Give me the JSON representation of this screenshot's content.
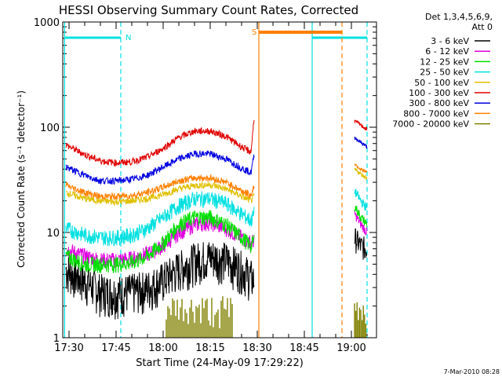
{
  "chart_data": {
    "type": "line",
    "title": "HESSI Observing Summary Count Rates, Corrected",
    "xlabel": "Start Time (24-May-09 17:29:22)",
    "ylabel": "Corrected Count Rate (s⁻¹ detector⁻¹)",
    "y_scale": "log",
    "ylim": [
      1,
      1000
    ],
    "xlim": [
      "17:28",
      "19:08"
    ],
    "x_ticks": [
      "17:30",
      "17:45",
      "18:00",
      "18:15",
      "18:30",
      "18:45",
      "19:00"
    ],
    "y_ticks": [
      "1",
      "10",
      "100",
      "1000"
    ],
    "legend_title": "Det 1,3,4,5,6,9,\nAtt 0",
    "legend_position": "right",
    "data_gap": [
      "18:29",
      "19:05"
    ],
    "series": [
      {
        "name": "3 - 6 keV",
        "color": "#000000",
        "x": [
          "17:29",
          "17:35",
          "17:40",
          "17:45",
          "17:50",
          "17:55",
          "18:00",
          "18:05",
          "18:10",
          "18:15",
          "18:20",
          "18:25",
          "18:28",
          "18:29"
        ],
        "y": [
          4.5,
          3.5,
          2.8,
          2.7,
          2.8,
          3.0,
          3.6,
          4.6,
          5.5,
          6.0,
          5.6,
          4.6,
          3.8,
          3.5
        ],
        "x2": [
          "19:01",
          "19:03",
          "19:05"
        ],
        "y2": [
          9.0,
          7.5,
          7.0
        ]
      },
      {
        "name": "6 - 12 keV",
        "color": "#e000e0",
        "x": [
          "17:29",
          "17:35",
          "17:40",
          "17:45",
          "17:50",
          "17:55",
          "18:00",
          "18:05",
          "18:10",
          "18:15",
          "18:20",
          "18:25",
          "18:28",
          "18:29"
        ],
        "y": [
          7.0,
          6.0,
          5.5,
          5.5,
          5.7,
          6.3,
          7.5,
          10.0,
          12.0,
          12.5,
          11.0,
          9.0,
          8.0,
          8.5
        ],
        "x2": [
          "19:01",
          "19:03",
          "19:05"
        ],
        "y2": [
          15.0,
          12.0,
          10.0
        ]
      },
      {
        "name": "12 - 25 keV",
        "color": "#00e000",
        "x": [
          "17:29",
          "17:35",
          "17:40",
          "17:45",
          "17:50",
          "17:55",
          "18:00",
          "18:05",
          "18:10",
          "18:15",
          "18:20",
          "18:25",
          "18:28",
          "18:29"
        ],
        "y": [
          6.0,
          5.0,
          5.0,
          5.0,
          5.2,
          6.0,
          8.0,
          12.0,
          14.0,
          14.0,
          12.0,
          9.0,
          7.5,
          8.5
        ],
        "x2": [
          "19:01",
          "19:03",
          "19:05"
        ],
        "y2": [
          18.0,
          14.0,
          12.0
        ]
      },
      {
        "name": "25 - 50 keV",
        "color": "#00e0e0",
        "x": [
          "17:29",
          "17:35",
          "17:40",
          "17:45",
          "17:50",
          "17:55",
          "18:00",
          "18:05",
          "18:10",
          "18:15",
          "18:20",
          "18:25",
          "18:28",
          "18:29"
        ],
        "y": [
          11.0,
          9.5,
          9.0,
          9.0,
          9.5,
          11.0,
          14.0,
          18.0,
          21.0,
          21.0,
          19.0,
          15.0,
          13.0,
          15.0
        ],
        "x2": [
          "19:01",
          "19:03",
          "19:05"
        ],
        "y2": [
          25.0,
          20.0,
          17.0
        ]
      },
      {
        "name": "50 - 100 keV",
        "color": "#e0c000",
        "x": [
          "17:29",
          "17:35",
          "17:40",
          "17:45",
          "17:50",
          "17:55",
          "18:00",
          "18:05",
          "18:10",
          "18:15",
          "18:20",
          "18:25",
          "18:28",
          "18:29"
        ],
        "y": [
          24.0,
          21.0,
          20.0,
          19.5,
          20.0,
          21.0,
          23.0,
          26.0,
          28.0,
          28.5,
          26.0,
          22.0,
          20.0,
          22.0
        ],
        "x2": [
          "19:01",
          "19:03",
          "19:05"
        ],
        "y2": [
          40.0,
          36.0,
          33.0
        ]
      },
      {
        "name": "100 - 300 keV",
        "color": "#e00000",
        "x": [
          "17:29",
          "17:35",
          "17:40",
          "17:45",
          "17:50",
          "17:55",
          "18:00",
          "18:05",
          "18:10",
          "18:15",
          "18:20",
          "18:25",
          "18:28",
          "18:29"
        ],
        "y": [
          68.0,
          55.0,
          48.0,
          46.0,
          47.0,
          52.0,
          63.0,
          80.0,
          92.0,
          92.0,
          82.0,
          65.0,
          58.0,
          125.0
        ],
        "x2": [
          "19:01",
          "19:03",
          "19:05"
        ],
        "y2": [
          115.0,
          105.0,
          95.0
        ]
      },
      {
        "name": "300 - 800 keV",
        "color": "#0000e0",
        "x": [
          "17:29",
          "17:35",
          "17:40",
          "17:45",
          "17:50",
          "17:55",
          "18:00",
          "18:05",
          "18:10",
          "18:15",
          "18:20",
          "18:25",
          "18:28",
          "18:29"
        ],
        "y": [
          42.0,
          35.0,
          31.0,
          31.0,
          32.0,
          35.0,
          42.0,
          50.0,
          56.0,
          56.0,
          50.0,
          41.0,
          37.0,
          55.0
        ],
        "x2": [
          "19:01",
          "19:03",
          "19:05"
        ],
        "y2": [
          80.0,
          72.0,
          65.0
        ]
      },
      {
        "name": "800 - 7000 keV",
        "color": "#ff8000",
        "x": [
          "17:29",
          "17:35",
          "17:40",
          "17:45",
          "17:50",
          "17:55",
          "18:00",
          "18:05",
          "18:10",
          "18:15",
          "18:20",
          "18:25",
          "18:28",
          "18:29"
        ],
        "y": [
          28.0,
          24.0,
          22.0,
          22.0,
          22.5,
          24.0,
          27.0,
          31.0,
          33.0,
          33.0,
          30.0,
          25.0,
          22.5,
          28.0
        ],
        "x2": [
          "19:01",
          "19:03",
          "19:05"
        ],
        "y2": [
          45.0,
          40.0,
          37.0
        ]
      },
      {
        "name": "7000 - 20000 keV",
        "color": "#808000"
      }
    ]
  }
}
